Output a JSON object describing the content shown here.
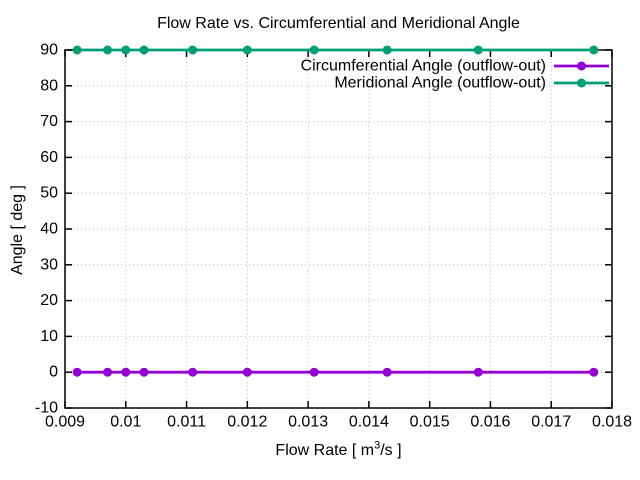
{
  "chart_data": {
    "type": "line",
    "title": "Flow Rate vs. Circumferential and Meridional Angle",
    "xlabel_parts": {
      "pre": "Flow Rate [ m",
      "sup": "3",
      "post": "/s ]"
    },
    "ylabel": "Angle [ deg ]",
    "xlim": [
      0.009,
      0.018
    ],
    "ylim": [
      -10,
      90
    ],
    "x_ticks": [
      0.009,
      0.01,
      0.011,
      0.012,
      0.013,
      0.014,
      0.015,
      0.016,
      0.017,
      0.018
    ],
    "x_tick_labels": [
      "0.009",
      "0.01",
      "0.011",
      "0.012",
      "0.013",
      "0.014",
      "0.015",
      "0.016",
      "0.017",
      "0.018"
    ],
    "y_ticks": [
      -10,
      0,
      10,
      20,
      30,
      40,
      50,
      60,
      70,
      80,
      90
    ],
    "y_tick_labels": [
      "-10",
      "0",
      "10",
      "20",
      "30",
      "40",
      "50",
      "60",
      "70",
      "80",
      "90"
    ],
    "grid": true,
    "legend_position": "top-right-inside",
    "x": [
      0.0092,
      0.0097,
      0.01,
      0.0103,
      0.0111,
      0.012,
      0.0131,
      0.0143,
      0.0158,
      0.0177
    ],
    "series": [
      {
        "name": "Circumferential Angle (outflow-out)",
        "color": "#9400d3",
        "values": [
          0,
          0,
          0,
          0,
          0,
          0,
          0,
          0,
          0,
          0
        ]
      },
      {
        "name": "Meridional Angle (outflow-out)",
        "color": "#009e73",
        "values": [
          90,
          90,
          90,
          90,
          90,
          90,
          90,
          90,
          90,
          90
        ]
      }
    ]
  },
  "colors": {
    "background": "#ffffff",
    "text": "#000000",
    "frame": "#000000",
    "grid": "#bdbdbd"
  }
}
